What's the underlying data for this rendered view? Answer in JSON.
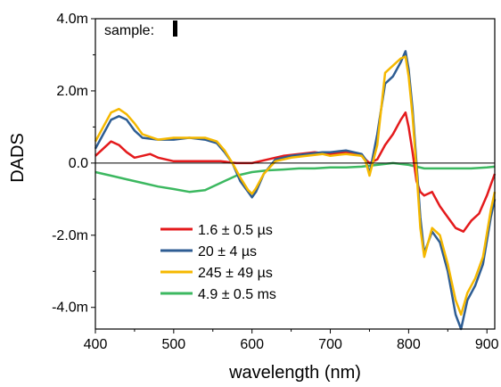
{
  "chart_data": {
    "type": "line",
    "xlabel": "wavelength (nm)",
    "ylabel": "DADS",
    "annotation": "sample:",
    "xlim": [
      400,
      910
    ],
    "ylim": [
      -4.6,
      4.0
    ],
    "xticks": [
      {
        "value": 400,
        "label": "400"
      },
      {
        "value": 500,
        "label": "500"
      },
      {
        "value": 600,
        "label": "600"
      },
      {
        "value": 700,
        "label": "700"
      },
      {
        "value": 800,
        "label": "800"
      },
      {
        "value": 900,
        "label": "900"
      }
    ],
    "yticks": [
      {
        "value": 4.0,
        "label": "4.0m"
      },
      {
        "value": 2.0,
        "label": "2.0m"
      },
      {
        "value": 0.0,
        "label": "0.0"
      },
      {
        "value": -2.0,
        "label": "-2.0m"
      },
      {
        "value": -4.0,
        "label": "-4.0m"
      }
    ],
    "zero_line": true,
    "grid": false,
    "legend_position": "lower-left",
    "series": [
      {
        "name": "1.6 ± 0.5 µs",
        "color": "#e41a1c",
        "points": [
          [
            400,
            0.2
          ],
          [
            410,
            0.4
          ],
          [
            420,
            0.6
          ],
          [
            430,
            0.5
          ],
          [
            440,
            0.3
          ],
          [
            450,
            0.15
          ],
          [
            460,
            0.2
          ],
          [
            470,
            0.25
          ],
          [
            480,
            0.15
          ],
          [
            490,
            0.1
          ],
          [
            500,
            0.05
          ],
          [
            520,
            0.05
          ],
          [
            540,
            0.05
          ],
          [
            560,
            0.05
          ],
          [
            580,
            0.0
          ],
          [
            600,
            0.0
          ],
          [
            620,
            0.1
          ],
          [
            640,
            0.2
          ],
          [
            660,
            0.25
          ],
          [
            680,
            0.3
          ],
          [
            700,
            0.25
          ],
          [
            720,
            0.3
          ],
          [
            740,
            0.2
          ],
          [
            750,
            0.0
          ],
          [
            760,
            0.1
          ],
          [
            770,
            0.5
          ],
          [
            780,
            0.8
          ],
          [
            790,
            1.2
          ],
          [
            796,
            1.4
          ],
          [
            800,
            1.0
          ],
          [
            805,
            0.3
          ],
          [
            810,
            -0.5
          ],
          [
            815,
            -0.8
          ],
          [
            820,
            -0.9
          ],
          [
            830,
            -0.8
          ],
          [
            840,
            -1.2
          ],
          [
            850,
            -1.5
          ],
          [
            860,
            -1.8
          ],
          [
            870,
            -1.9
          ],
          [
            880,
            -1.6
          ],
          [
            890,
            -1.4
          ],
          [
            900,
            -0.9
          ],
          [
            905,
            -0.6
          ],
          [
            910,
            -0.3
          ]
        ]
      },
      {
        "name": "20 ± 4 µs",
        "color": "#2e5d93",
        "points": [
          [
            400,
            0.4
          ],
          [
            410,
            0.8
          ],
          [
            420,
            1.2
          ],
          [
            430,
            1.3
          ],
          [
            440,
            1.2
          ],
          [
            450,
            0.9
          ],
          [
            460,
            0.7
          ],
          [
            480,
            0.65
          ],
          [
            500,
            0.65
          ],
          [
            520,
            0.7
          ],
          [
            540,
            0.65
          ],
          [
            555,
            0.55
          ],
          [
            565,
            0.3
          ],
          [
            575,
            0.0
          ],
          [
            585,
            -0.5
          ],
          [
            595,
            -0.8
          ],
          [
            600,
            -0.95
          ],
          [
            605,
            -0.8
          ],
          [
            615,
            -0.3
          ],
          [
            630,
            0.1
          ],
          [
            650,
            0.2
          ],
          [
            670,
            0.25
          ],
          [
            690,
            0.3
          ],
          [
            700,
            0.3
          ],
          [
            720,
            0.35
          ],
          [
            740,
            0.25
          ],
          [
            745,
            0.1
          ],
          [
            750,
            -0.3
          ],
          [
            760,
            0.8
          ],
          [
            770,
            2.2
          ],
          [
            780,
            2.4
          ],
          [
            790,
            2.8
          ],
          [
            796,
            3.1
          ],
          [
            800,
            2.6
          ],
          [
            805,
            1.5
          ],
          [
            810,
            0.0
          ],
          [
            815,
            -1.5
          ],
          [
            820,
            -2.5
          ],
          [
            830,
            -1.9
          ],
          [
            840,
            -2.2
          ],
          [
            850,
            -3.0
          ],
          [
            860,
            -4.2
          ],
          [
            867,
            -4.6
          ],
          [
            875,
            -3.8
          ],
          [
            885,
            -3.4
          ],
          [
            895,
            -2.8
          ],
          [
            905,
            -1.5
          ],
          [
            910,
            -1.0
          ]
        ]
      },
      {
        "name": "245 ± 49 µs",
        "color": "#f5b800",
        "points": [
          [
            400,
            0.6
          ],
          [
            410,
            1.0
          ],
          [
            420,
            1.4
          ],
          [
            430,
            1.5
          ],
          [
            440,
            1.35
          ],
          [
            450,
            1.1
          ],
          [
            460,
            0.8
          ],
          [
            480,
            0.65
          ],
          [
            500,
            0.7
          ],
          [
            520,
            0.7
          ],
          [
            540,
            0.7
          ],
          [
            555,
            0.6
          ],
          [
            565,
            0.35
          ],
          [
            575,
            0.0
          ],
          [
            585,
            -0.4
          ],
          [
            595,
            -0.75
          ],
          [
            600,
            -0.85
          ],
          [
            605,
            -0.7
          ],
          [
            615,
            -0.3
          ],
          [
            630,
            0.05
          ],
          [
            650,
            0.15
          ],
          [
            670,
            0.2
          ],
          [
            690,
            0.25
          ],
          [
            700,
            0.2
          ],
          [
            720,
            0.25
          ],
          [
            740,
            0.2
          ],
          [
            745,
            0.05
          ],
          [
            750,
            -0.35
          ],
          [
            760,
            0.5
          ],
          [
            770,
            2.5
          ],
          [
            780,
            2.7
          ],
          [
            790,
            2.9
          ],
          [
            796,
            2.95
          ],
          [
            800,
            2.4
          ],
          [
            805,
            1.3
          ],
          [
            810,
            -0.2
          ],
          [
            815,
            -1.8
          ],
          [
            820,
            -2.6
          ],
          [
            830,
            -1.8
          ],
          [
            840,
            -2.0
          ],
          [
            850,
            -2.8
          ],
          [
            860,
            -3.8
          ],
          [
            867,
            -4.2
          ],
          [
            875,
            -3.6
          ],
          [
            885,
            -3.2
          ],
          [
            895,
            -2.6
          ],
          [
            905,
            -1.3
          ],
          [
            910,
            -0.8
          ]
        ]
      },
      {
        "name": "4.9 ± 0.5 ms",
        "color": "#3cb860",
        "points": [
          [
            400,
            -0.25
          ],
          [
            420,
            -0.35
          ],
          [
            440,
            -0.45
          ],
          [
            460,
            -0.55
          ],
          [
            480,
            -0.65
          ],
          [
            500,
            -0.72
          ],
          [
            520,
            -0.8
          ],
          [
            540,
            -0.75
          ],
          [
            560,
            -0.55
          ],
          [
            580,
            -0.35
          ],
          [
            600,
            -0.25
          ],
          [
            620,
            -0.2
          ],
          [
            640,
            -0.18
          ],
          [
            660,
            -0.15
          ],
          [
            680,
            -0.15
          ],
          [
            700,
            -0.12
          ],
          [
            720,
            -0.12
          ],
          [
            740,
            -0.1
          ],
          [
            760,
            -0.05
          ],
          [
            780,
            0.0
          ],
          [
            800,
            -0.05
          ],
          [
            820,
            -0.15
          ],
          [
            840,
            -0.15
          ],
          [
            860,
            -0.15
          ],
          [
            880,
            -0.15
          ],
          [
            900,
            -0.12
          ],
          [
            910,
            -0.1
          ]
        ]
      }
    ]
  }
}
